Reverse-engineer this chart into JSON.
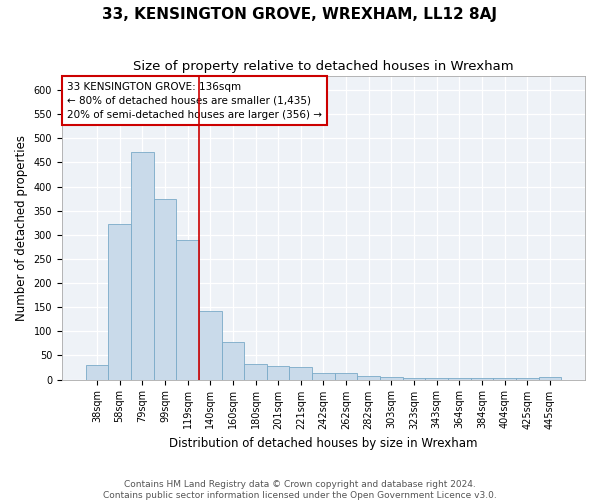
{
  "title": "33, KENSINGTON GROVE, WREXHAM, LL12 8AJ",
  "subtitle": "Size of property relative to detached houses in Wrexham",
  "xlabel": "Distribution of detached houses by size in Wrexham",
  "ylabel": "Number of detached properties",
  "bar_labels": [
    "38sqm",
    "58sqm",
    "79sqm",
    "99sqm",
    "119sqm",
    "140sqm",
    "160sqm",
    "180sqm",
    "201sqm",
    "221sqm",
    "242sqm",
    "262sqm",
    "282sqm",
    "303sqm",
    "323sqm",
    "343sqm",
    "364sqm",
    "384sqm",
    "404sqm",
    "425sqm",
    "445sqm"
  ],
  "bar_values": [
    30,
    322,
    472,
    375,
    290,
    143,
    77,
    33,
    28,
    27,
    14,
    14,
    7,
    5,
    3,
    3,
    3,
    3,
    3,
    3,
    5
  ],
  "bar_color": "#c9daea",
  "bar_edge_color": "#7aaac8",
  "vline_color": "#cc0000",
  "annotation_line1": "33 KENSINGTON GROVE: 136sqm",
  "annotation_line2": "← 80% of detached houses are smaller (1,435)",
  "annotation_line3": "20% of semi-detached houses are larger (356) →",
  "annotation_box_color": "#cc0000",
  "ylim": [
    0,
    630
  ],
  "yticks": [
    0,
    50,
    100,
    150,
    200,
    250,
    300,
    350,
    400,
    450,
    500,
    550,
    600
  ],
  "footer_line1": "Contains HM Land Registry data © Crown copyright and database right 2024.",
  "footer_line2": "Contains public sector information licensed under the Open Government Licence v3.0.",
  "plot_bg_color": "#eef2f7",
  "title_fontsize": 11,
  "subtitle_fontsize": 9.5,
  "axis_label_fontsize": 8.5,
  "tick_fontsize": 7,
  "annotation_fontsize": 7.5,
  "footer_fontsize": 6.5
}
